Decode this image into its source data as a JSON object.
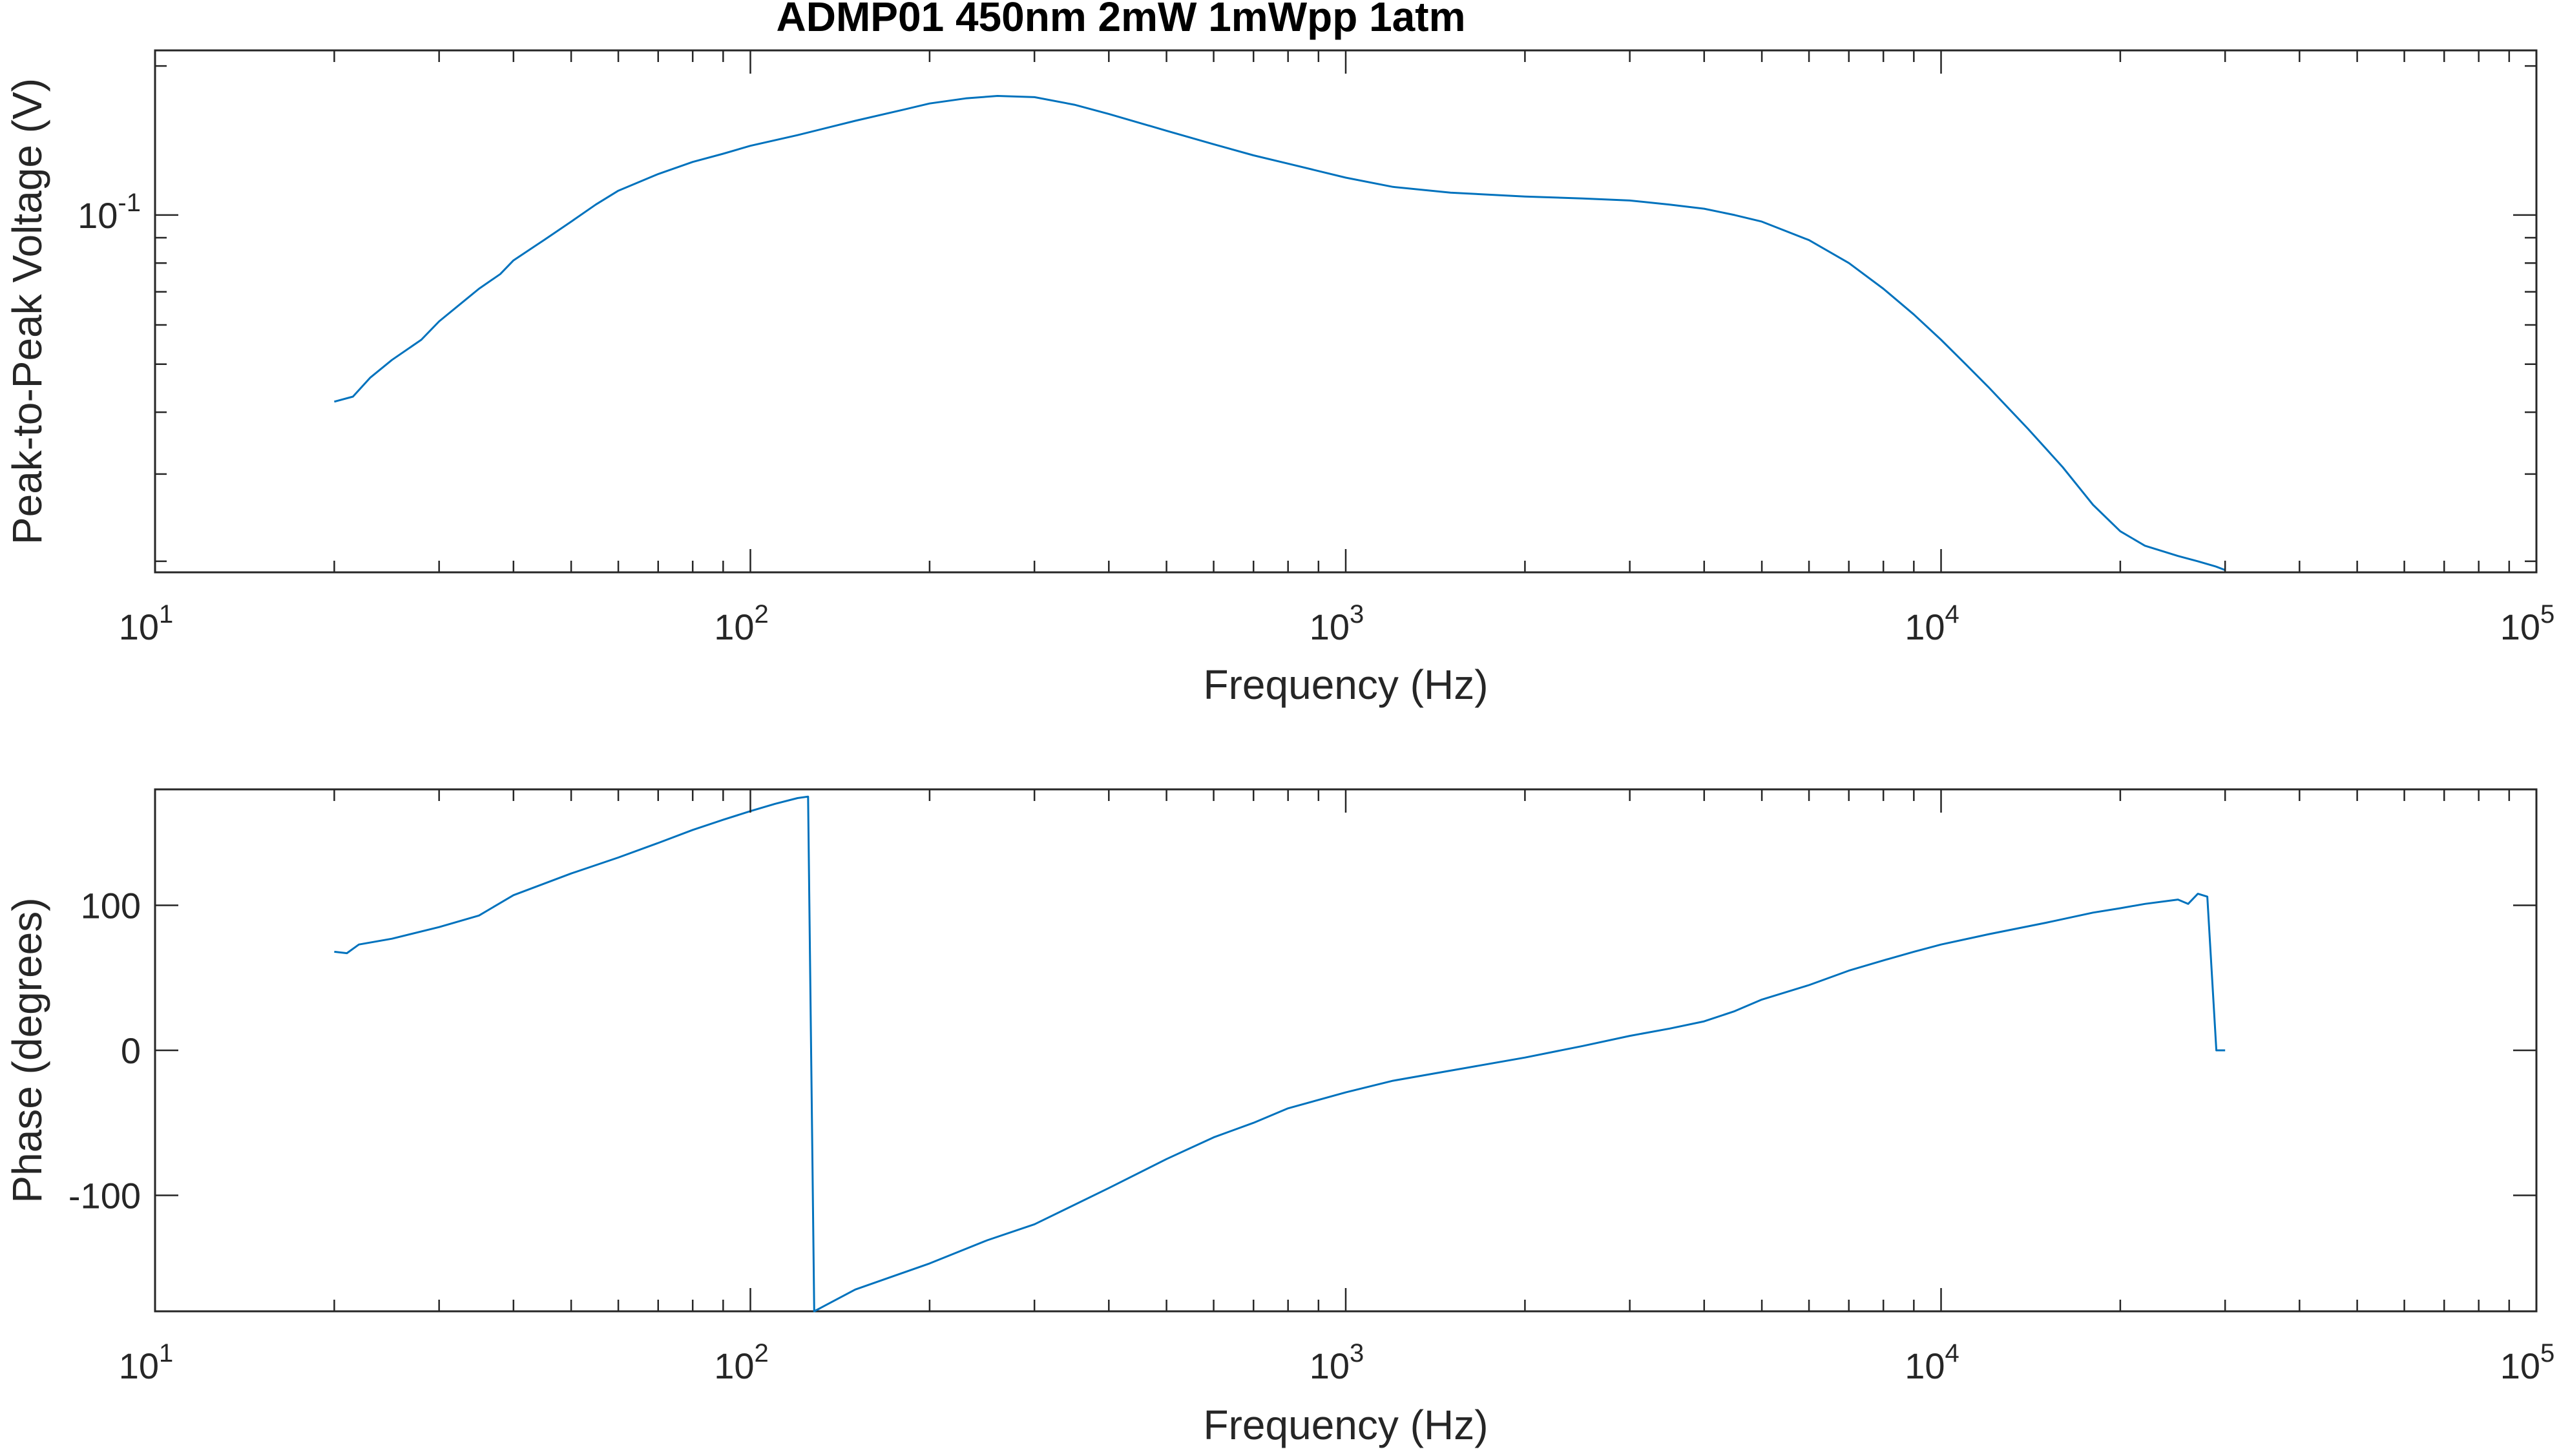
{
  "colors": {
    "series": "#0072BD",
    "axes": "#262626"
  },
  "chart_data": [
    {
      "type": "line",
      "title": "ADMP01 450nm 2mW 1mWpp 1atm",
      "xlabel": "Frequency (Hz)",
      "ylabel": "Peak-to-Peak Voltage (V)",
      "xscale": "log",
      "yscale": "log",
      "xlim": [
        10,
        100000
      ],
      "ylim": [
        0.019,
        0.215
      ],
      "grid": false,
      "x_ticks": [
        {
          "base": "10",
          "exp": "1",
          "value": 10
        },
        {
          "base": "10",
          "exp": "2",
          "value": 100
        },
        {
          "base": "10",
          "exp": "3",
          "value": 1000
        },
        {
          "base": "10",
          "exp": "4",
          "value": 10000
        },
        {
          "base": "10",
          "exp": "5",
          "value": 100000
        }
      ],
      "y_ticks": [
        {
          "base": "10",
          "exp": "-1",
          "value": 0.1
        }
      ],
      "series": [
        {
          "color": "#0072BD",
          "x": [
            20,
            21.5,
            23,
            25,
            28,
            30,
            33,
            35,
            38,
            40,
            45,
            50,
            55,
            60,
            70,
            80,
            90,
            100,
            120,
            150,
            180,
            200,
            230,
            260,
            300,
            350,
            400,
            500,
            600,
            700,
            800,
            1000,
            1200,
            1500,
            2000,
            2500,
            3000,
            3500,
            4000,
            4500,
            5000,
            6000,
            7000,
            8000,
            9000,
            10000,
            11000,
            12000,
            14000,
            16000,
            18000,
            20000,
            22000,
            25000,
            27000,
            29000,
            30000
          ],
          "y": [
            0.042,
            0.043,
            0.047,
            0.051,
            0.056,
            0.061,
            0.067,
            0.071,
            0.076,
            0.081,
            0.089,
            0.097,
            0.105,
            0.112,
            0.121,
            0.128,
            0.133,
            0.138,
            0.145,
            0.155,
            0.163,
            0.168,
            0.172,
            0.174,
            0.173,
            0.167,
            0.16,
            0.148,
            0.139,
            0.132,
            0.127,
            0.119,
            0.114,
            0.111,
            0.109,
            0.108,
            0.107,
            0.105,
            0.103,
            0.1,
            0.097,
            0.089,
            0.08,
            0.071,
            0.063,
            0.056,
            0.05,
            0.045,
            0.037,
            0.031,
            0.026,
            0.023,
            0.0215,
            0.0205,
            0.02,
            0.0195,
            0.0192
          ]
        }
      ]
    },
    {
      "type": "line",
      "xlabel": "Frequency (Hz)",
      "ylabel": "Phase (degrees)",
      "xscale": "log",
      "yscale": "linear",
      "xlim": [
        10,
        100000
      ],
      "ylim": [
        -180,
        180
      ],
      "grid": false,
      "x_ticks": [
        {
          "base": "10",
          "exp": "1",
          "value": 10
        },
        {
          "base": "10",
          "exp": "2",
          "value": 100
        },
        {
          "base": "10",
          "exp": "3",
          "value": 1000
        },
        {
          "base": "10",
          "exp": "4",
          "value": 10000
        },
        {
          "base": "10",
          "exp": "5",
          "value": 100000
        }
      ],
      "y_ticks": [
        {
          "label": "-100",
          "value": -100
        },
        {
          "label": "0",
          "value": 0
        },
        {
          "label": "100",
          "value": 100
        }
      ],
      "series": [
        {
          "color": "#0072BD",
          "x": [
            20,
            21,
            22,
            25,
            30,
            35,
            40,
            50,
            60,
            70,
            80,
            90,
            100,
            110,
            120,
            125,
            128,
            150,
            200,
            250,
            300,
            400,
            500,
            600,
            700,
            800,
            1000,
            1200,
            1500,
            2000,
            2500,
            3000,
            3500,
            4000,
            4500,
            5000,
            6000,
            7000,
            8000,
            9000,
            10000,
            12000,
            15000,
            18000,
            20000,
            22000,
            25000,
            26000,
            27000,
            28000,
            29000,
            30000
          ],
          "y": [
            68,
            67,
            73,
            77,
            85,
            93,
            107,
            122,
            133,
            143,
            152,
            159,
            165,
            170,
            174,
            175,
            -180,
            -165,
            -147,
            -131,
            -120,
            -95,
            -75,
            -60,
            -50,
            -40,
            -29,
            -21,
            -14,
            -5,
            3,
            10,
            15,
            20,
            27,
            35,
            45,
            55,
            62,
            68,
            73,
            80,
            88,
            95,
            98,
            101,
            104,
            101,
            108,
            106,
            0,
            0
          ]
        }
      ]
    }
  ]
}
